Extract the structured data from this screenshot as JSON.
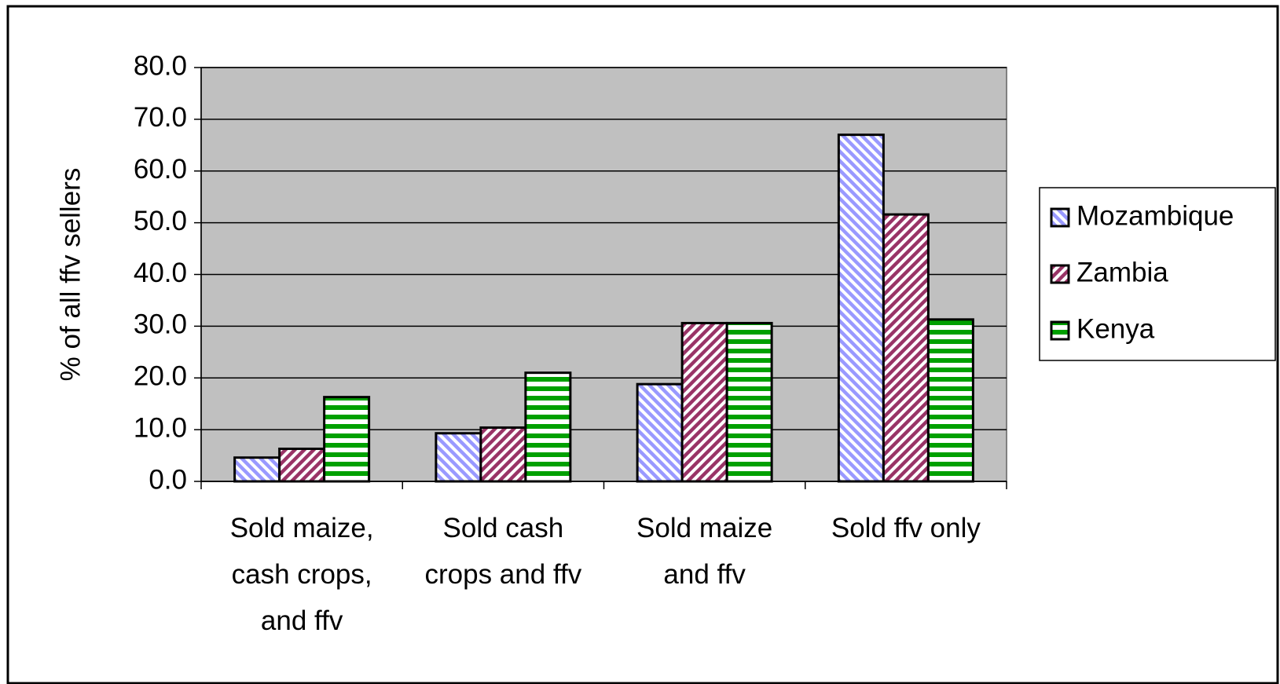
{
  "chart_data": {
    "type": "bar",
    "y_label": "% of all ffv sellers",
    "categories": [
      "Sold maize, cash crops, and ffv",
      "Sold cash crops and ffv",
      "Sold maize and ffv",
      "Sold ffv only"
    ],
    "series": [
      {
        "name": "Mozambique",
        "color": "#9999ff",
        "values": [
          4.6,
          9.3,
          18.8,
          67.0
        ]
      },
      {
        "name": "Zambia",
        "color": "#993366",
        "values": [
          6.3,
          10.4,
          30.6,
          51.6
        ]
      },
      {
        "name": "Kenya",
        "color": "#00a000",
        "values": [
          16.3,
          21.0,
          30.6,
          31.3
        ]
      }
    ],
    "ylim": [
      0,
      80
    ],
    "yticks": [
      {
        "value": 0,
        "label": "0.0"
      },
      {
        "value": 10,
        "label": "10.0"
      },
      {
        "value": 20,
        "label": "20.0"
      },
      {
        "value": 30,
        "label": "30.0"
      },
      {
        "value": 40,
        "label": "40.0"
      },
      {
        "value": 50,
        "label": "50.0"
      },
      {
        "value": 60,
        "label": "60.0"
      },
      {
        "value": 70,
        "label": "70.0"
      },
      {
        "value": 80,
        "label": "80.0"
      }
    ],
    "grid": true,
    "plot_background": "#c0c0c0",
    "legend": "right"
  }
}
